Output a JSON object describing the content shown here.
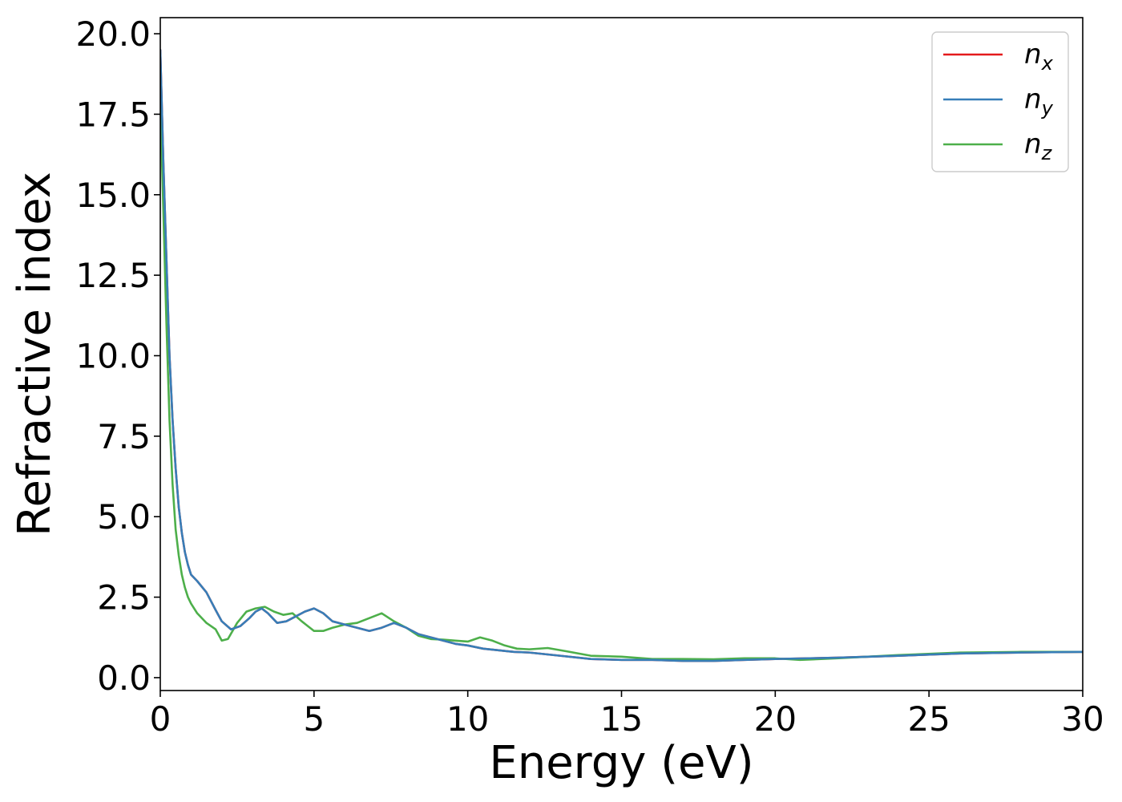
{
  "chart_data": {
    "type": "line",
    "title": "",
    "xlabel": "Energy (eV)",
    "ylabel": "Refractive index",
    "xlim": [
      0,
      30
    ],
    "ylim": [
      -0.4,
      20.5
    ],
    "xticks": [
      0,
      5,
      10,
      15,
      20,
      25,
      30
    ],
    "xtick_labels": [
      "0",
      "5",
      "10",
      "15",
      "20",
      "25",
      "30"
    ],
    "yticks": [
      0,
      2.5,
      5,
      7.5,
      10,
      12.5,
      15,
      17.5,
      20
    ],
    "ytick_labels": [
      "0.0",
      "2.5",
      "5.0",
      "7.5",
      "10.0",
      "12.5",
      "15.0",
      "17.5",
      "20.0"
    ],
    "grid": false,
    "legend_position": "top-right",
    "series": [
      {
        "name": "n_x",
        "legend_base": "n",
        "legend_sub": "x",
        "color": "#e41a1c",
        "x": [
          0,
          0.1,
          0.2,
          0.3,
          0.4,
          0.5,
          0.6,
          0.7,
          0.8,
          0.9,
          1.0,
          1.2,
          1.5,
          1.8,
          2.0,
          2.3,
          2.6,
          2.9,
          3.1,
          3.3,
          3.5,
          3.8,
          4.1,
          4.4,
          4.7,
          5.0,
          5.3,
          5.6,
          6.0,
          6.4,
          6.8,
          7.2,
          7.6,
          8.0,
          8.4,
          8.8,
          9.2,
          9.6,
          10.0,
          10.5,
          11.0,
          11.5,
          12.0,
          13.0,
          14.0,
          15.0,
          16.0,
          17.0,
          18.0,
          19.0,
          20.0,
          22.0,
          24.0,
          26.0,
          28.0,
          30.0
        ],
        "y": [
          19.5,
          16.0,
          13.0,
          10.0,
          8.0,
          6.5,
          5.3,
          4.5,
          3.9,
          3.5,
          3.2,
          3.0,
          2.65,
          2.1,
          1.75,
          1.5,
          1.6,
          1.85,
          2.05,
          2.15,
          2.0,
          1.7,
          1.75,
          1.9,
          2.05,
          2.15,
          2.0,
          1.75,
          1.65,
          1.55,
          1.45,
          1.55,
          1.7,
          1.55,
          1.35,
          1.25,
          1.15,
          1.05,
          1.0,
          0.9,
          0.85,
          0.8,
          0.78,
          0.68,
          0.58,
          0.55,
          0.55,
          0.52,
          0.52,
          0.55,
          0.58,
          0.62,
          0.68,
          0.75,
          0.78,
          0.8
        ]
      },
      {
        "name": "n_y",
        "legend_base": "n",
        "legend_sub": "y",
        "color": "#377eb8",
        "x": [
          0,
          0.1,
          0.2,
          0.3,
          0.4,
          0.5,
          0.6,
          0.7,
          0.8,
          0.9,
          1.0,
          1.2,
          1.5,
          1.8,
          2.0,
          2.3,
          2.6,
          2.9,
          3.1,
          3.3,
          3.5,
          3.8,
          4.1,
          4.4,
          4.7,
          5.0,
          5.3,
          5.6,
          6.0,
          6.4,
          6.8,
          7.2,
          7.6,
          8.0,
          8.4,
          8.8,
          9.2,
          9.6,
          10.0,
          10.5,
          11.0,
          11.5,
          12.0,
          13.0,
          14.0,
          15.0,
          16.0,
          17.0,
          18.0,
          19.0,
          20.0,
          22.0,
          24.0,
          26.0,
          28.0,
          30.0
        ],
        "y": [
          19.5,
          16.0,
          13.0,
          10.0,
          8.0,
          6.5,
          5.3,
          4.5,
          3.9,
          3.5,
          3.2,
          3.0,
          2.65,
          2.1,
          1.75,
          1.5,
          1.6,
          1.85,
          2.05,
          2.15,
          2.0,
          1.7,
          1.75,
          1.9,
          2.05,
          2.15,
          2.0,
          1.75,
          1.65,
          1.55,
          1.45,
          1.55,
          1.7,
          1.55,
          1.35,
          1.25,
          1.15,
          1.05,
          1.0,
          0.9,
          0.85,
          0.8,
          0.78,
          0.68,
          0.58,
          0.55,
          0.55,
          0.52,
          0.52,
          0.55,
          0.58,
          0.62,
          0.68,
          0.75,
          0.78,
          0.8
        ]
      },
      {
        "name": "n_z",
        "legend_base": "n",
        "legend_sub": "z",
        "color": "#4daf4a",
        "x": [
          0,
          0.1,
          0.2,
          0.3,
          0.4,
          0.5,
          0.6,
          0.7,
          0.8,
          0.9,
          1.0,
          1.2,
          1.5,
          1.8,
          2.0,
          2.2,
          2.5,
          2.8,
          3.1,
          3.4,
          3.7,
          4.0,
          4.3,
          4.6,
          5.0,
          5.3,
          5.6,
          6.0,
          6.4,
          6.8,
          7.2,
          7.6,
          8.0,
          8.4,
          8.8,
          9.2,
          9.6,
          10.0,
          10.4,
          10.8,
          11.2,
          11.6,
          12.0,
          12.6,
          13.2,
          14.0,
          15.0,
          16.0,
          17.0,
          18.0,
          19.0,
          20.0,
          20.8,
          22.0,
          24.0,
          26.0,
          28.0,
          30.0
        ],
        "y": [
          18.0,
          14.5,
          11.0,
          8.0,
          6.0,
          4.6,
          3.8,
          3.2,
          2.8,
          2.5,
          2.3,
          2.0,
          1.7,
          1.5,
          1.15,
          1.2,
          1.7,
          2.05,
          2.15,
          2.2,
          2.05,
          1.95,
          2.0,
          1.75,
          1.45,
          1.45,
          1.55,
          1.65,
          1.7,
          1.85,
          2.0,
          1.75,
          1.55,
          1.3,
          1.2,
          1.18,
          1.15,
          1.12,
          1.25,
          1.15,
          1.0,
          0.9,
          0.88,
          0.92,
          0.82,
          0.68,
          0.65,
          0.58,
          0.58,
          0.57,
          0.6,
          0.6,
          0.55,
          0.6,
          0.7,
          0.78,
          0.8,
          0.8
        ]
      }
    ]
  }
}
